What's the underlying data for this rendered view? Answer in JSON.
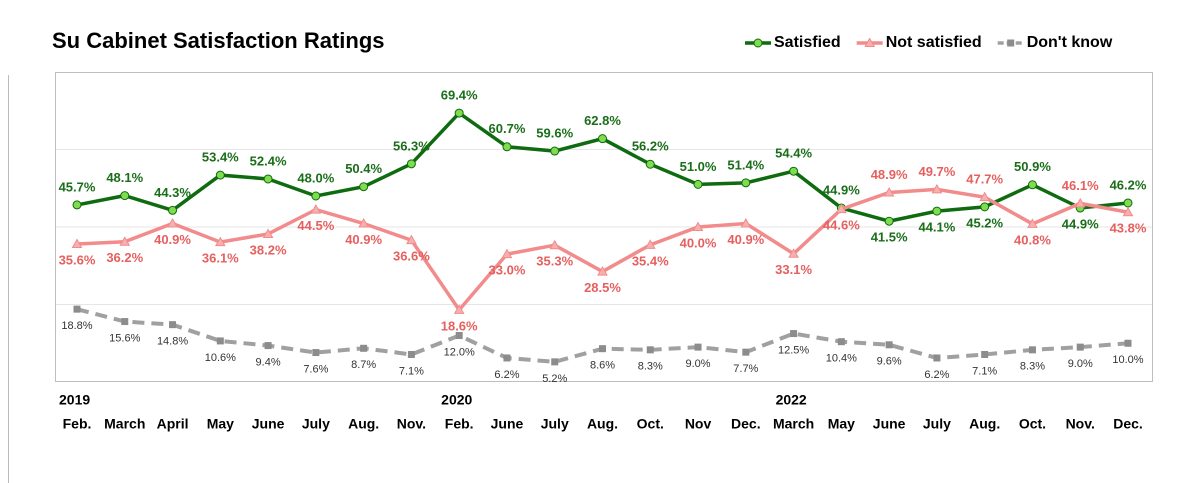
{
  "chart_data": {
    "type": "line",
    "title": "Su Cabinet Satisfaction Ratings",
    "categories": [
      "Feb.",
      "March",
      "April",
      "May",
      "June",
      "July",
      "Aug.",
      "Nov.",
      "Feb.",
      "June",
      "July",
      "Aug.",
      "Oct.",
      "Nov",
      "Dec.",
      "March",
      "May",
      "June",
      "July",
      "Aug.",
      "Oct.",
      "Nov.",
      "Dec."
    ],
    "years": [
      "2019",
      null,
      null,
      null,
      null,
      null,
      null,
      null,
      "2020",
      null,
      null,
      null,
      null,
      null,
      null,
      "2022",
      null,
      null,
      null,
      null,
      null,
      null,
      null
    ],
    "ylim": [
      0,
      80
    ],
    "yticks": [
      20,
      40,
      60
    ],
    "grid": true,
    "legend": "top-right",
    "series": [
      {
        "name": "Satisfied",
        "color": "#0f6b0f",
        "marker_color": "#7fdc4f",
        "label_color": "#1a6e1a",
        "marker": "circle",
        "values": [
          45.7,
          48.1,
          44.3,
          53.4,
          52.4,
          48.0,
          50.4,
          56.3,
          69.4,
          60.7,
          59.6,
          62.8,
          56.2,
          51.0,
          51.4,
          54.4,
          44.9,
          41.5,
          44.1,
          45.2,
          50.9,
          44.9,
          46.2
        ],
        "value_labels": [
          "45.7%",
          "48.1%",
          "44.3%",
          "53.4%",
          "52.4%",
          "48.0%",
          "50.4%",
          "56.3%",
          "69.4%",
          "60.7%",
          "59.6%",
          "62.8%",
          "56.2%",
          "51.0%",
          "51.4%",
          "54.4%",
          "44.9%",
          "41.5%",
          "44.1%",
          "45.2%",
          "50.9%",
          "44.9%",
          "46.2%"
        ]
      },
      {
        "name": "Not satisfied",
        "color": "#f28b8b",
        "marker_color": "#f7b0b0",
        "label_color": "#e5605f",
        "marker": "triangle",
        "values": [
          35.6,
          36.2,
          40.9,
          36.1,
          38.2,
          44.5,
          40.9,
          36.6,
          18.6,
          33.0,
          35.3,
          28.5,
          35.4,
          40.0,
          40.9,
          33.1,
          44.6,
          48.9,
          49.7,
          47.7,
          40.8,
          46.1,
          43.8
        ],
        "value_labels": [
          "35.6%",
          "36.2%",
          "40.9%",
          "36.1%",
          "38.2%",
          "44.5%",
          "40.9%",
          "36.6%",
          "18.6%",
          "33.0%",
          "35.3%",
          "28.5%",
          "35.4%",
          "40.0%",
          "40.9%",
          "33.1%",
          "44.6%",
          "48.9%",
          "49.7%",
          "47.7%",
          "40.8%",
          "46.1%",
          "43.8%"
        ]
      },
      {
        "name": "Don't know",
        "color": "#a0a0a0",
        "marker_color": "#8c8c8c",
        "label_color": "#333333",
        "marker": "square",
        "dashed": true,
        "values": [
          18.8,
          15.6,
          14.8,
          10.6,
          9.4,
          7.6,
          8.7,
          7.1,
          12.0,
          6.2,
          5.2,
          8.6,
          8.3,
          9.0,
          7.7,
          12.5,
          10.4,
          9.6,
          6.2,
          7.1,
          8.3,
          9.0,
          10.0
        ],
        "value_labels": [
          "18.8%",
          "15.6%",
          "14.8%",
          "10.6%",
          "9.4%",
          "7.6%",
          "8.7%",
          "7.1%",
          "12.0%",
          "6.2%",
          "5.2%",
          "8.6%",
          "8.3%",
          "9.0%",
          "7.7%",
          "12.5%",
          "10.4%",
          "9.6%",
          "6.2%",
          "7.1%",
          "8.3%",
          "9.0%",
          "10.0%"
        ]
      }
    ]
  }
}
